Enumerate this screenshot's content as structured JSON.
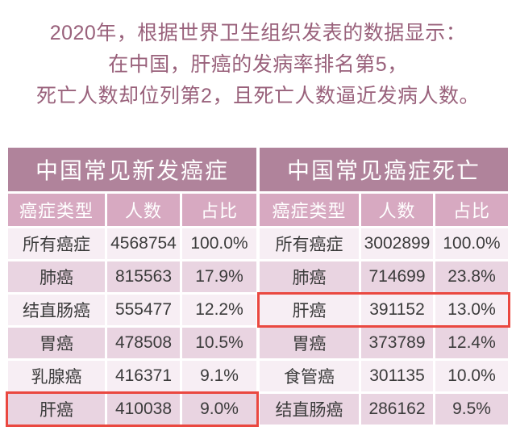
{
  "intro": {
    "lines": [
      "2020年，根据世界卫生组织发表的数据显示：",
      "在中国，肝癌的发病率排名第5，",
      "死亡人数却位列第2，且死亡人数逼近发病人数。"
    ]
  },
  "colors": {
    "accent_text": "#99617b",
    "title_bg": "#b0839b",
    "header_bg": "#d7a9c1",
    "row_light": "#f7eef4",
    "row_pink": "#e9d4e1",
    "highlight_border": "#ea4840",
    "body_text": "#3b3b3b",
    "page_bg": "#ffffff"
  },
  "chart_data": [
    {
      "type": "table",
      "title": "中国常见新发癌症",
      "columns": [
        "癌症类型",
        "人数",
        "占比"
      ],
      "rows": [
        [
          "所有癌症",
          "4568754",
          "100.0%"
        ],
        [
          "肺癌",
          "815563",
          "17.9%"
        ],
        [
          "结直肠癌",
          "555477",
          "12.2%"
        ],
        [
          "胃癌",
          "478508",
          "10.5%"
        ],
        [
          "乳腺癌",
          "416371",
          "9.1%"
        ],
        [
          "肝癌",
          "410038",
          "9.0%"
        ]
      ],
      "highlighted_row_index": 5,
      "highlight_meaning": "肝癌发病排名第5，红框标注"
    },
    {
      "type": "table",
      "title": "中国常见癌症死亡",
      "columns": [
        "癌症类型",
        "人数",
        "占比"
      ],
      "rows": [
        [
          "所有癌症",
          "3002899",
          "100.0%"
        ],
        [
          "肺癌",
          "714699",
          "23.8%"
        ],
        [
          "肝癌",
          "391152",
          "13.0%"
        ],
        [
          "胃癌",
          "373789",
          "12.4%"
        ],
        [
          "食管癌",
          "301135",
          "10.0%"
        ],
        [
          "结直肠癌",
          "286162",
          "9.5%"
        ]
      ],
      "highlighted_row_index": 2,
      "highlight_meaning": "肝癌死亡排名第2（死亡位列），红框标注"
    }
  ]
}
